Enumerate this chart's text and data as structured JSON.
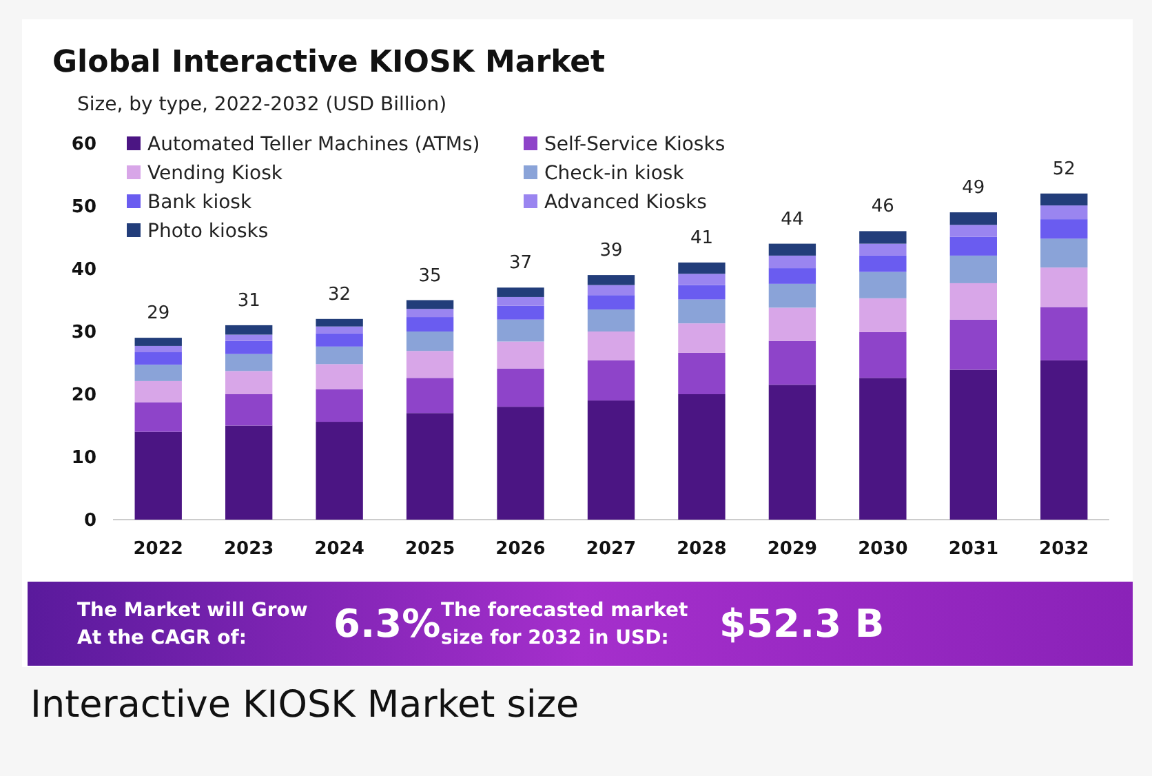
{
  "chart_data": {
    "type": "bar",
    "stacked": true,
    "title": "Global Interactive KIOSK Market",
    "subtitle": "Size, by type, 2022-2032 (USD Billion)",
    "categories": [
      "2022",
      "2023",
      "2024",
      "2025",
      "2026",
      "2027",
      "2028",
      "2029",
      "2030",
      "2031",
      "2032"
    ],
    "series": [
      {
        "name": "Automated Teller Machines (ATMs)",
        "color": "#4b1583",
        "values": [
          14,
          15,
          15.6,
          17,
          18,
          19,
          20,
          21.5,
          22.6,
          23.9,
          25.4
        ]
      },
      {
        "name": "Self-Service Kiosks",
        "color": "#8e44c9",
        "values": [
          4.7,
          5,
          5.2,
          5.6,
          6.1,
          6.4,
          6.6,
          7,
          7.3,
          8,
          8.5
        ]
      },
      {
        "name": "Vending Kiosk",
        "color": "#d8a6e8",
        "values": [
          3.4,
          3.7,
          4,
          4.3,
          4.3,
          4.6,
          4.7,
          5.3,
          5.4,
          5.8,
          6.3
        ]
      },
      {
        "name": "Check-in kiosk",
        "color": "#8aa3d8",
        "values": [
          2.6,
          2.7,
          2.8,
          3.1,
          3.5,
          3.5,
          3.8,
          3.8,
          4.2,
          4.4,
          4.6
        ]
      },
      {
        "name": "Bank kiosk",
        "color": "#6a5cf0",
        "values": [
          2,
          2.1,
          2.1,
          2.3,
          2.2,
          2.3,
          2.3,
          2.5,
          2.6,
          3,
          3.1
        ]
      },
      {
        "name": "Advanced Kiosks",
        "color": "#9a85f0",
        "values": [
          1,
          1,
          1.1,
          1.3,
          1.4,
          1.6,
          1.8,
          2,
          1.9,
          1.9,
          2.2
        ]
      },
      {
        "name": "Photo kiosks",
        "color": "#223d7a",
        "values": [
          1.3,
          1.5,
          1.2,
          1.4,
          1.5,
          1.6,
          1.8,
          1.9,
          2,
          2,
          1.9
        ]
      }
    ],
    "totals": [
      "29",
      "31",
      "32",
      "35",
      "37",
      "39",
      "41",
      "44",
      "46",
      "49",
      "52"
    ],
    "ylim": [
      0,
      60
    ],
    "yticks": [
      0,
      10,
      20,
      30,
      40,
      50,
      60
    ],
    "grid": false,
    "legend": "top left",
    "annotations": [
      "The Market will Grow At the CAGR of:",
      "6.3%",
      "The forecasted market size for 2032 in USD:",
      "$52.3 B",
      "Interactive KIOSK Market size"
    ]
  }
}
